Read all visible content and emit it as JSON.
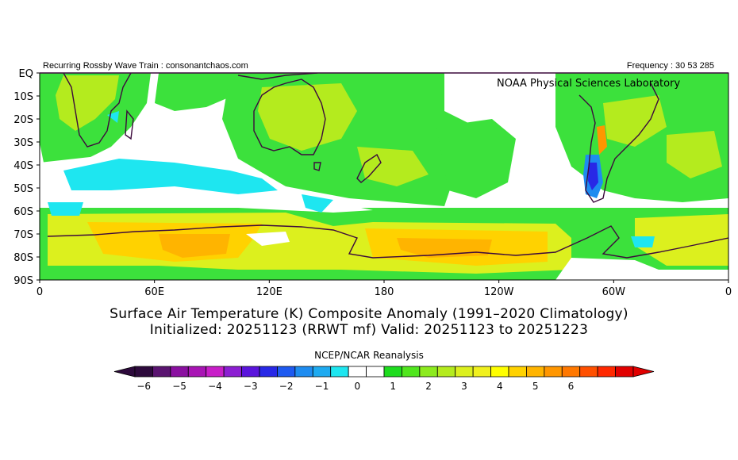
{
  "header": {
    "left": "Recurring Rossby Wave Train : consonantchaos.com",
    "right": "Frequency : 30 53 285",
    "lab": "NOAA Physical Sciences Laboratory"
  },
  "map": {
    "lat_labels": [
      "EQ",
      "10S",
      "20S",
      "30S",
      "40S",
      "50S",
      "60S",
      "70S",
      "80S",
      "90S"
    ],
    "lon_labels": [
      "0",
      "60E",
      "120E",
      "180",
      "120W",
      "60W",
      "0"
    ]
  },
  "title": {
    "line1": "Surface Air Temperature (K) Composite Anomaly (1991–2020 Climatology)",
    "line2": "Initialized: 20251123 (RRWT mf) Valid: 20251123 to 20251223"
  },
  "source": "NCEP/NCAR Reanalysis",
  "colorbar": {
    "labels": [
      "-6",
      "-5",
      "-4",
      "-3",
      "-2",
      "-1",
      "0",
      "1",
      "2",
      "3",
      "4",
      "5",
      "6"
    ],
    "colors": [
      "#2d0a3c",
      "#5a1470",
      "#8a10a0",
      "#a814b4",
      "#c81ec8",
      "#8c1ed2",
      "#5a14dc",
      "#2828e6",
      "#1e5af0",
      "#1e8cf0",
      "#1eaaf0",
      "#1ee6f0",
      "#ffffff",
      "#ffffff",
      "#1edc1e",
      "#50e61e",
      "#8ceb1e",
      "#b4eb1e",
      "#dcf01e",
      "#f0f01e",
      "#ffff00",
      "#ffd200",
      "#ffb400",
      "#ff9600",
      "#ff7800",
      "#ff5000",
      "#ff2800",
      "#e10000"
    ],
    "under_color": "#2d0a3c",
    "over_color": "#e10000"
  }
}
